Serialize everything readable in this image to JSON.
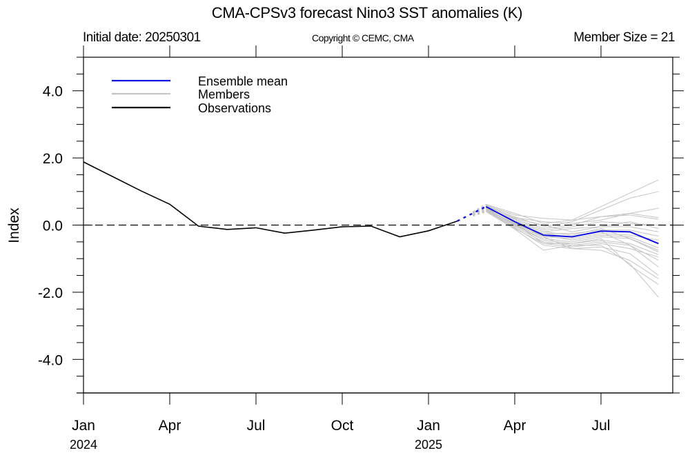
{
  "header": {
    "title": "CMA-CPSv3 forecast Nino3 SST anomalies (K)",
    "initial_date": "Initial date: 20250301",
    "copyright": "Copyright © CEMC, CMA",
    "member_size": "Member Size = 21"
  },
  "colors": {
    "ensemble_mean": "#1010e0",
    "members": "#c4c4c4",
    "observations": "#000000",
    "zero_line": "#000000"
  },
  "chart_data": {
    "type": "line",
    "title": "CMA-CPSv3 forecast Nino3 SST anomalies (K)",
    "xlabel": "",
    "ylabel": "Index",
    "ylim": [
      -5,
      5
    ],
    "xlim_months_from_jan2024": [
      0,
      20.5
    ],
    "y_ticks": [
      4.0,
      2.0,
      0.0,
      -2.0,
      -4.0
    ],
    "y_tick_labels": [
      "4.0",
      "2.0",
      "0.0",
      "-2.0",
      "-4.0"
    ],
    "y_minor_step": 0.5,
    "x_ticks": [
      {
        "month_index": 0,
        "label": "Jan",
        "year": "2024"
      },
      {
        "month_index": 3,
        "label": "Apr",
        "year": ""
      },
      {
        "month_index": 6,
        "label": "Jul",
        "year": ""
      },
      {
        "month_index": 9,
        "label": "Oct",
        "year": ""
      },
      {
        "month_index": 12,
        "label": "Jan",
        "year": "2025"
      },
      {
        "month_index": 15,
        "label": "Apr",
        "year": ""
      },
      {
        "month_index": 18,
        "label": "Jul",
        "year": ""
      }
    ],
    "zero_line": {
      "y": 0,
      "style": "dashed"
    },
    "legend": {
      "placement": "top-left",
      "entries": [
        {
          "label": "Ensemble mean",
          "series": "ensemble_mean"
        },
        {
          "label": "Members",
          "series": "members"
        },
        {
          "label": "Observations",
          "series": "observations"
        }
      ]
    },
    "observations": {
      "name": "Observations",
      "x": [
        0,
        1,
        2,
        3,
        4,
        5,
        6,
        7,
        8,
        9,
        10,
        11,
        12,
        13
      ],
      "values": [
        1.88,
        1.45,
        1.02,
        0.62,
        -0.03,
        -0.13,
        -0.08,
        -0.24,
        -0.15,
        -0.05,
        -0.03,
        -0.35,
        -0.17,
        0.12
      ]
    },
    "ensemble_mean": {
      "name": "Ensemble mean",
      "x": [
        14,
        15,
        16,
        17,
        18,
        19,
        20
      ],
      "values": [
        0.55,
        0.1,
        -0.3,
        -0.35,
        -0.18,
        -0.2,
        -0.55
      ],
      "connector_from_obs": {
        "x": [
          13,
          14
        ],
        "values": [
          0.12,
          0.55
        ],
        "style": "dotted"
      }
    },
    "members": {
      "name": "Members",
      "x": [
        14,
        15,
        16,
        17,
        18,
        19,
        20
      ],
      "series": [
        [
          0.62,
          0.35,
          0.05,
          0.15,
          0.55,
          0.95,
          1.35
        ],
        [
          0.58,
          0.25,
          -0.05,
          0.1,
          0.45,
          0.8,
          1.0
        ],
        [
          0.6,
          0.3,
          0.2,
          0.15,
          0.25,
          0.35,
          0.5
        ],
        [
          0.55,
          0.22,
          0.1,
          0.05,
          0.15,
          0.35,
          0.22
        ],
        [
          0.52,
          0.18,
          -0.1,
          0.0,
          0.25,
          0.3,
          0.17
        ],
        [
          0.5,
          0.15,
          -0.15,
          -0.05,
          0.1,
          0.05,
          0.0
        ],
        [
          0.56,
          0.1,
          -0.2,
          -0.1,
          -0.05,
          -0.05,
          -0.2
        ],
        [
          0.48,
          0.05,
          -0.25,
          -0.25,
          -0.15,
          -0.15,
          -0.33
        ],
        [
          0.54,
          0.08,
          -0.35,
          -0.4,
          -0.25,
          -0.3,
          -0.45
        ],
        [
          0.5,
          0.02,
          -0.3,
          -0.45,
          -0.3,
          -0.35,
          -0.68
        ],
        [
          0.46,
          -0.02,
          -0.4,
          -0.5,
          -0.35,
          -0.4,
          -0.8
        ],
        [
          0.52,
          0.0,
          -0.45,
          -0.55,
          -0.45,
          -0.55,
          -0.88
        ],
        [
          0.44,
          -0.05,
          -0.5,
          -0.6,
          -0.5,
          -0.6,
          -1.05
        ],
        [
          0.48,
          0.05,
          -0.55,
          -0.65,
          -0.55,
          -0.7,
          -0.95
        ],
        [
          0.42,
          -0.08,
          -0.6,
          -0.7,
          -0.65,
          -0.85,
          -1.5
        ],
        [
          0.5,
          0.0,
          -0.35,
          -0.7,
          -0.75,
          -1.05,
          -1.6
        ],
        [
          0.45,
          -0.1,
          -0.55,
          -0.55,
          -0.4,
          -1.2,
          -1.77
        ],
        [
          0.4,
          -0.12,
          -0.75,
          -0.6,
          -0.6,
          -1.15,
          -2.15
        ],
        [
          0.47,
          0.03,
          -0.25,
          -0.35,
          -0.2,
          -0.6,
          -1.25
        ],
        [
          0.53,
          0.12,
          -0.2,
          -0.3,
          -0.1,
          -0.4,
          -0.75
        ],
        [
          0.57,
          0.2,
          0.0,
          -0.2,
          -0.05,
          0.1,
          -0.1
        ]
      ]
    }
  }
}
